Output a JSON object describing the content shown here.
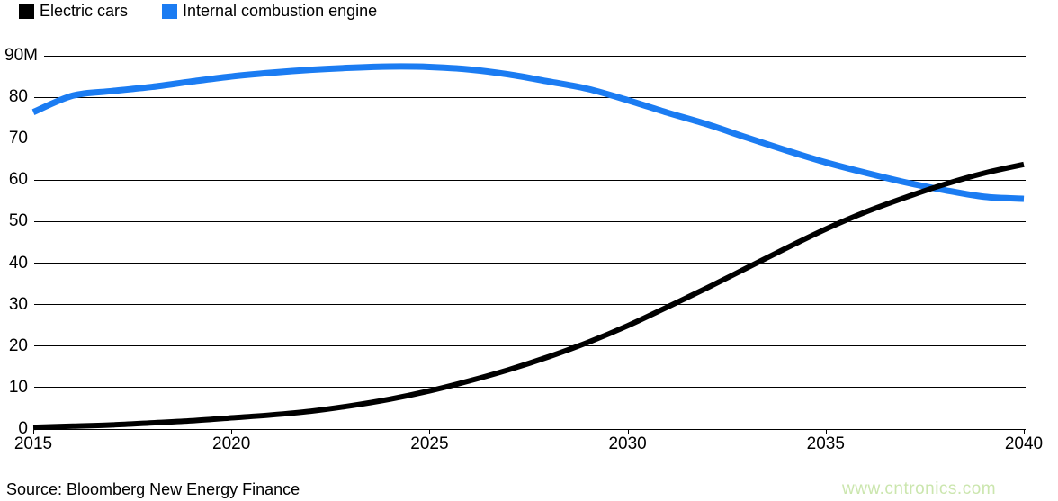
{
  "legend": [
    {
      "label": "Electric cars",
      "color": "#000000"
    },
    {
      "label": "Internal combustion engine",
      "color": "#1b7cf2"
    }
  ],
  "y_axis": {
    "labels": [
      "90M",
      "80",
      "70",
      "60",
      "50",
      "40",
      "30",
      "20",
      "10",
      "0"
    ]
  },
  "x_axis": {
    "labels": [
      "2015",
      "2020",
      "2025",
      "2030",
      "2035",
      "2040"
    ]
  },
  "source": "Source: Bloomberg New Energy Finance",
  "watermark": {
    "text": "www.cntronics.com",
    "color": "#cbe6ae"
  },
  "chart_data": {
    "type": "line",
    "title": "",
    "xlabel": "",
    "ylabel": "",
    "x": [
      2015,
      2016,
      2017,
      2018,
      2019,
      2020,
      2021,
      2022,
      2023,
      2024,
      2025,
      2026,
      2027,
      2028,
      2029,
      2030,
      2031,
      2032,
      2033,
      2034,
      2035,
      2036,
      2037,
      2038,
      2039,
      2040
    ],
    "series": [
      {
        "name": "Electric cars",
        "color": "#000000",
        "values": [
          0.4,
          0.7,
          1.0,
          1.5,
          2.0,
          2.7,
          3.4,
          4.3,
          5.6,
          7.2,
          9.2,
          11.6,
          14.3,
          17.4,
          20.9,
          24.9,
          29.4,
          34.0,
          38.8,
          43.6,
          48.2,
          52.3,
          55.8,
          59.0,
          61.7,
          63.8
        ]
      },
      {
        "name": "Internal combustion engine",
        "color": "#1b7cf2",
        "values": [
          76.4,
          80.4,
          81.5,
          82.5,
          83.8,
          85.0,
          85.9,
          86.6,
          87.1,
          87.4,
          87.3,
          86.7,
          85.5,
          83.8,
          82.0,
          79.3,
          76.3,
          73.5,
          70.3,
          67.2,
          64.3,
          61.8,
          59.5,
          57.6,
          56.0,
          55.5
        ]
      }
    ],
    "ylim": [
      0,
      90
    ],
    "xlim": [
      2015,
      2040
    ],
    "grid": "horizontal",
    "legend_position": "top-left"
  }
}
